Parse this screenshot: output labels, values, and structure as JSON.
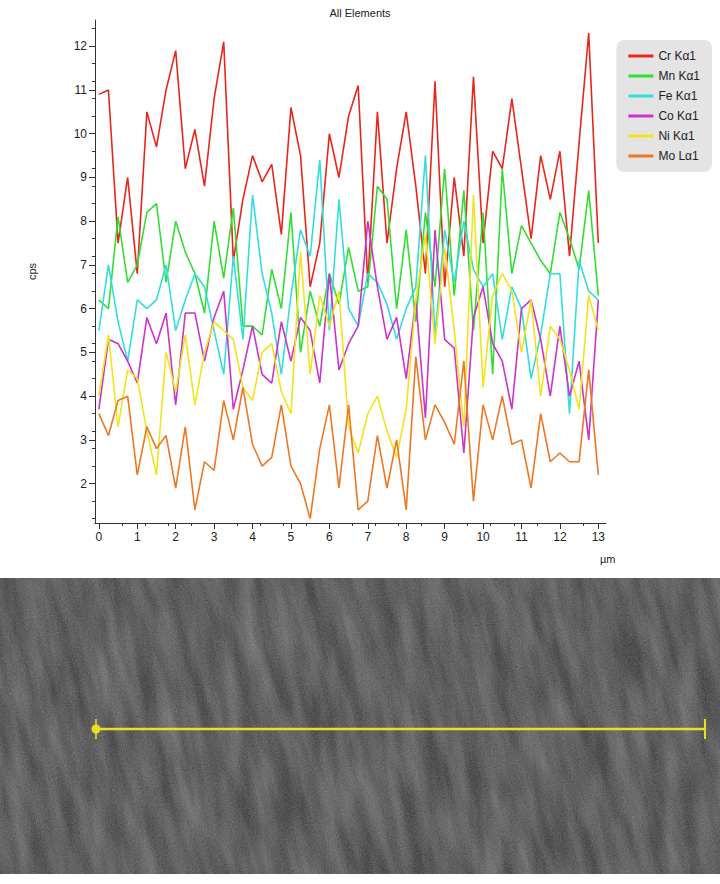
{
  "chart_data": {
    "type": "line",
    "title": "All Elements",
    "x_label": "µm",
    "y_label": "cps",
    "xlim": [
      -0.1,
      13.2
    ],
    "xticks": [
      0,
      1,
      2,
      3,
      4,
      5,
      6,
      7,
      8,
      9,
      10,
      11,
      12,
      13
    ],
    "ylim": [
      1.1,
      12.6
    ],
    "yticks": [
      2,
      3,
      4,
      5,
      6,
      7,
      8,
      9,
      10,
      11,
      12
    ],
    "grid": false,
    "legend": "right",
    "x": [
      0,
      0.25,
      0.5,
      0.75,
      1,
      1.25,
      1.5,
      1.75,
      2,
      2.25,
      2.5,
      2.75,
      3,
      3.25,
      3.5,
      3.75,
      4,
      4.25,
      4.5,
      4.75,
      5,
      5.25,
      5.5,
      5.75,
      6,
      6.25,
      6.5,
      6.75,
      7,
      7.25,
      7.5,
      7.75,
      8,
      8.25,
      8.5,
      8.75,
      9,
      9.25,
      9.5,
      9.75,
      10,
      10.25,
      10.5,
      10.75,
      11,
      11.25,
      11.5,
      11.75,
      12,
      12.25,
      12.5,
      12.75,
      13
    ],
    "series": [
      {
        "name": "Cr Kα1",
        "color": "#e8261c",
        "values": [
          10.9,
          11.0,
          7.5,
          9.0,
          6.8,
          10.5,
          9.7,
          11.0,
          11.9,
          9.2,
          10.1,
          8.8,
          10.8,
          12.1,
          7.1,
          8.5,
          9.5,
          8.9,
          9.3,
          7.7,
          10.6,
          9.5,
          6.5,
          7.5,
          10.0,
          9.0,
          10.4,
          11.1,
          6.6,
          10.5,
          7.5,
          9.2,
          10.5,
          8.8,
          6.8,
          11.2,
          6.5,
          9.0,
          7.2,
          11.3,
          7.5,
          9.6,
          9.2,
          10.8,
          9.2,
          7.6,
          9.5,
          8.5,
          9.6,
          7.2,
          9.8,
          12.3,
          7.5
        ]
      },
      {
        "name": "Mn Kα1",
        "color": "#33dd33",
        "values": [
          6.2,
          6.0,
          8.1,
          6.6,
          7.0,
          8.2,
          8.4,
          6.6,
          8.0,
          7.3,
          6.8,
          5.9,
          8.0,
          6.7,
          8.3,
          5.6,
          5.6,
          5.4,
          6.9,
          6.0,
          8.2,
          5.0,
          6.4,
          5.6,
          6.8,
          6.1,
          7.4,
          6.4,
          6.5,
          8.8,
          8.5,
          6.0,
          7.8,
          5.7,
          8.2,
          6.5,
          9.2,
          6.3,
          8.7,
          5.5,
          8.2,
          4.5,
          9.2,
          6.8,
          7.9,
          7.5,
          7.1,
          6.8,
          8.2,
          7.6,
          6.9,
          8.7,
          6.3
        ]
      },
      {
        "name": "Fe Kα1",
        "color": "#33dddd",
        "values": [
          5.5,
          7.0,
          5.7,
          4.8,
          6.2,
          6.0,
          6.2,
          7.0,
          5.5,
          6.2,
          6.8,
          6.5,
          5.5,
          4.5,
          7.2,
          5.3,
          8.6,
          6.8,
          5.9,
          4.5,
          6.3,
          7.8,
          7.2,
          9.4,
          5.5,
          8.5,
          6.0,
          5.6,
          6.8,
          6.6,
          6.1,
          5.3,
          6.0,
          6.5,
          9.5,
          5.4,
          7.8,
          6.6,
          8.0,
          6.9,
          6.5,
          6.8,
          5.3,
          6.5,
          6.0,
          4.4,
          5.4,
          6.8,
          6.8,
          3.6,
          7.1,
          6.4,
          6.2
        ]
      },
      {
        "name": "Co Kα1",
        "color": "#cc33cc",
        "values": [
          3.7,
          5.3,
          5.2,
          4.8,
          4.3,
          5.8,
          5.2,
          5.9,
          3.8,
          5.9,
          5.9,
          4.8,
          5.8,
          6.4,
          3.7,
          4.6,
          5.6,
          4.5,
          4.3,
          5.7,
          4.8,
          5.8,
          5.5,
          4.3,
          6.8,
          4.6,
          5.2,
          5.6,
          8.0,
          6.5,
          5.3,
          5.8,
          4.4,
          6.2,
          3.5,
          7.8,
          5.3,
          5.1,
          2.7,
          5.8,
          6.5,
          5.2,
          4.8,
          3.7,
          6.0,
          6.2,
          5.3,
          4.0,
          5.6,
          4.0,
          4.8,
          3.0,
          6.2
        ]
      },
      {
        "name": "Ni Kα1",
        "color": "#f2e41c",
        "values": [
          4.0,
          5.4,
          3.3,
          4.6,
          4.4,
          3.2,
          2.2,
          5.0,
          4.1,
          5.4,
          3.8,
          5.0,
          5.7,
          5.5,
          5.3,
          4.2,
          3.9,
          5.0,
          5.2,
          4.1,
          3.6,
          7.3,
          4.5,
          6.3,
          5.6,
          6.4,
          3.3,
          2.7,
          3.6,
          4.0,
          3.2,
          2.6,
          3.7,
          6.2,
          7.7,
          5.2,
          7.4,
          5.5,
          3.3,
          8.6,
          4.2,
          6.3,
          6.8,
          6.4,
          5.0,
          6.2,
          4.0,
          5.6,
          5.3,
          4.6,
          3.7,
          6.3,
          5.5
        ]
      },
      {
        "name": "Mo Lα1",
        "color": "#ee7722",
        "values": [
          3.6,
          3.1,
          3.9,
          4.0,
          2.2,
          3.3,
          2.8,
          3.1,
          1.9,
          3.3,
          1.4,
          2.5,
          2.3,
          3.9,
          3.0,
          4.2,
          2.9,
          2.4,
          2.6,
          3.8,
          2.4,
          2.0,
          1.2,
          2.8,
          3.8,
          1.9,
          3.8,
          1.4,
          1.6,
          3.1,
          1.9,
          3.0,
          1.4,
          4.9,
          3.0,
          3.8,
          3.4,
          2.9,
          4.8,
          1.6,
          3.8,
          3.0,
          4.0,
          2.9,
          3.0,
          1.9,
          3.6,
          2.5,
          2.7,
          2.5,
          2.5,
          4.6,
          2.2
        ]
      }
    ]
  }
}
